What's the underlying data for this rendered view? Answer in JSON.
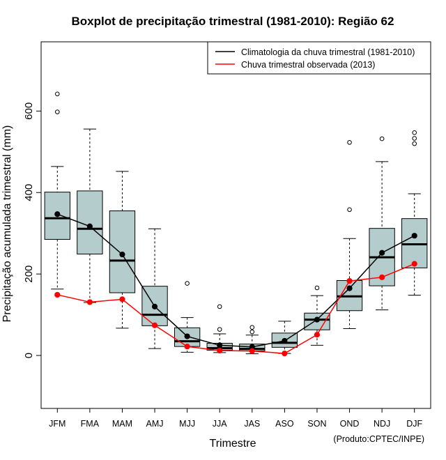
{
  "chart_data": {
    "type": "boxplot",
    "title": "Boxplot de precipitação trimestral (1981-2010): Região 62",
    "xlabel": "Trimestre",
    "ylabel": "Precipitação acumulada trimestral (mm)",
    "ylim": [
      -130,
      770
    ],
    "yticks": [
      0,
      200,
      400,
      600
    ],
    "credit": "(Produto:CPTEC/INPE)",
    "categories": [
      "JFM",
      "FMA",
      "MAM",
      "AMJ",
      "MJJ",
      "JJA",
      "JAS",
      "ASO",
      "SON",
      "OND",
      "NDJ",
      "DJF"
    ],
    "boxes": [
      {
        "whisker_low": 163,
        "q1": 285,
        "median": 337,
        "q3": 401,
        "whisker_high": 464,
        "outliers": [
          598,
          642
        ]
      },
      {
        "whisker_low": 130,
        "q1": 249,
        "median": 311,
        "q3": 404,
        "whisker_high": 556,
        "outliers": []
      },
      {
        "whisker_low": 67,
        "q1": 154,
        "median": 233,
        "q3": 355,
        "whisker_high": 452,
        "outliers": []
      },
      {
        "whisker_low": 17,
        "q1": 73,
        "median": 100,
        "q3": 170,
        "whisker_high": 311,
        "outliers": []
      },
      {
        "whisker_low": 8,
        "q1": 22,
        "median": 35,
        "q3": 68,
        "whisker_high": 93,
        "outliers": [
          177
        ]
      },
      {
        "whisker_low": 7,
        "q1": 13,
        "median": 18,
        "q3": 30,
        "whisker_high": 53,
        "outliers": [
          64,
          120
        ]
      },
      {
        "whisker_low": 4,
        "q1": 11,
        "median": 16,
        "q3": 28,
        "whisker_high": 50,
        "outliers": [
          58,
          69
        ]
      },
      {
        "whisker_low": 5,
        "q1": 20,
        "median": 31,
        "q3": 55,
        "whisker_high": 84,
        "outliers": []
      },
      {
        "whisker_low": 25,
        "q1": 63,
        "median": 88,
        "q3": 104,
        "whisker_high": 147,
        "outliers": [
          166
        ]
      },
      {
        "whisker_low": 66,
        "q1": 110,
        "median": 145,
        "q3": 184,
        "whisker_high": 287,
        "outliers": [
          358,
          523
        ]
      },
      {
        "whisker_low": 112,
        "q1": 171,
        "median": 241,
        "q3": 312,
        "whisker_high": 476,
        "outliers": [
          532
        ]
      },
      {
        "whisker_low": 148,
        "q1": 215,
        "median": 273,
        "q3": 336,
        "whisker_high": 397,
        "outliers": [
          520,
          533,
          547
        ]
      }
    ],
    "series": [
      {
        "name": "Climatologia da chuva trimestral (1981-2010)",
        "color": "#000000",
        "values": [
          347,
          317,
          248,
          120,
          47,
          25,
          21,
          36,
          88,
          165,
          252,
          294
        ]
      },
      {
        "name": "Chuva trimestral observada (2013)",
        "color": "#ff0000",
        "values": [
          149,
          131,
          138,
          74,
          22,
          12,
          11,
          5,
          51,
          183,
          192,
          225
        ]
      }
    ],
    "legend_position": "top-right",
    "box_fill": "#b4cccc"
  }
}
